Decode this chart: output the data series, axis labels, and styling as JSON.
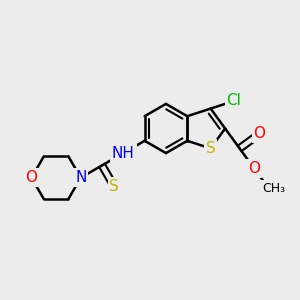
{
  "background_color": "#ececec",
  "bond_color": "#000000",
  "bond_width": 1.8,
  "atom_colors": {
    "S": "#c8b400",
    "N": "#0000ff",
    "O": "#ff0000",
    "Cl": "#00bb00",
    "C": "#000000",
    "H": "#555555"
  },
  "font_size": 11,
  "small_font_size": 9
}
